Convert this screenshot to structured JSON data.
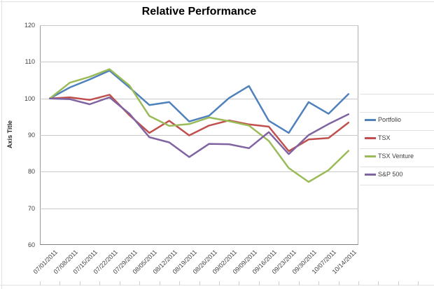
{
  "chart_data": {
    "type": "line",
    "title": "Relative Performance",
    "ylabel": "Axis Title",
    "xlabel": "",
    "ylim": [
      60,
      120
    ],
    "yticks": [
      60,
      70,
      80,
      90,
      100,
      110,
      120
    ],
    "grid": true,
    "legend_position": "right",
    "categories": [
      "07/01/2011",
      "07/08/2011",
      "07/15/2011",
      "07/22/2011",
      "07/29/2011",
      "08/05/2011",
      "08/12/2011",
      "08/19/2011",
      "08/26/2011",
      "09/02/2011",
      "09/09/2011",
      "09/16/2011",
      "09/23/2011",
      "09/30/2011",
      "10/07/2011",
      "10/14/2011"
    ],
    "series": [
      {
        "name": "Portfolio",
        "color": "#4F81BD",
        "values": [
          100,
          103.0,
          105.2,
          107.6,
          103.0,
          98.2,
          99.0,
          93.7,
          95.3,
          100.1,
          103.4,
          93.9,
          90.6,
          99.0,
          95.8,
          101.2
        ]
      },
      {
        "name": "TSX",
        "color": "#C0504D",
        "values": [
          100,
          100.3,
          99.6,
          101.0,
          95.4,
          90.6,
          93.9,
          89.9,
          92.6,
          94.0,
          92.9,
          92.3,
          85.6,
          88.8,
          89.2,
          93.4
        ]
      },
      {
        "name": "TSX Venture",
        "color": "#9BBB59",
        "values": [
          100,
          104.3,
          105.9,
          108.0,
          103.5,
          95.2,
          92.5,
          93.0,
          94.8,
          93.8,
          92.6,
          88.4,
          81.0,
          77.2,
          80.4,
          85.7
        ]
      },
      {
        "name": "S&P 500",
        "color": "#8064A2",
        "values": [
          100,
          99.8,
          98.4,
          100.3,
          95.8,
          89.4,
          88.0,
          84.0,
          87.6,
          87.5,
          86.4,
          90.8,
          84.8,
          90.0,
          93.0,
          95.7
        ]
      }
    ]
  },
  "colors": {
    "axis_line": "#808080",
    "gridline": "#c9c9c9",
    "tick_text": "#3f3f3f",
    "sheet_gridline": "#e2e2e2",
    "background": "#ffffff"
  }
}
